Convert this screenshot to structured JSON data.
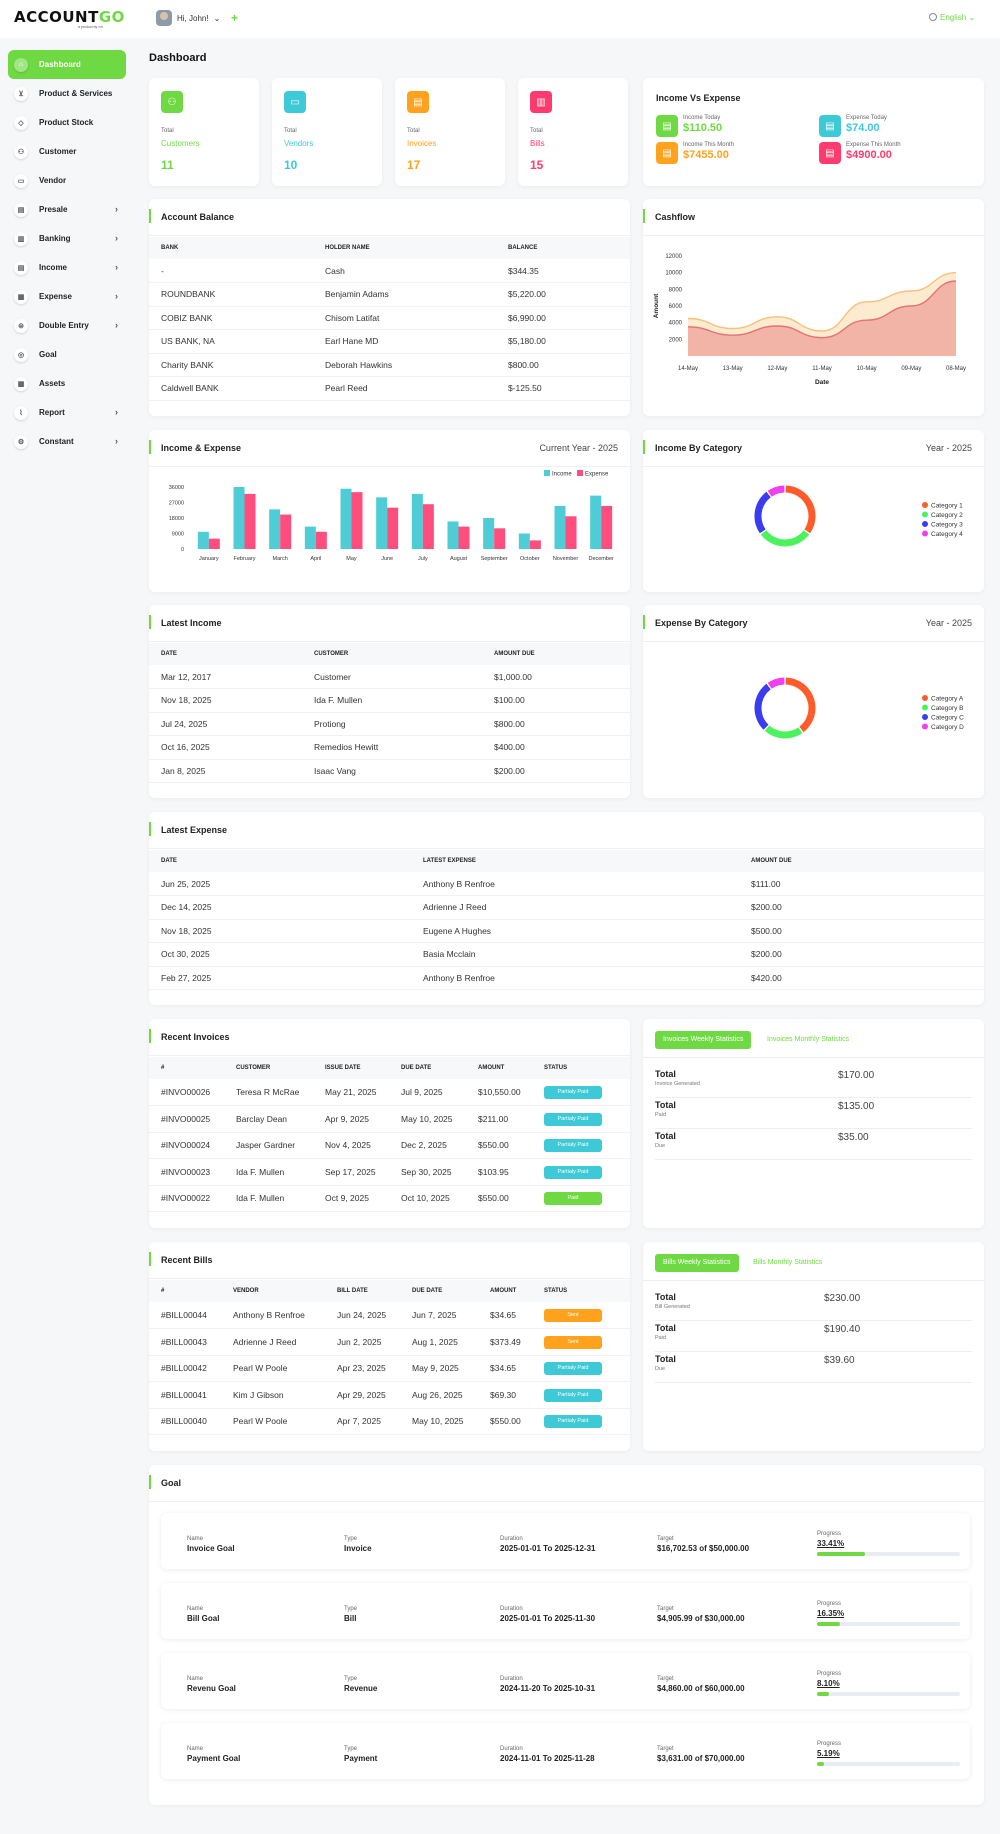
{
  "brand": {
    "name_a": "ACCOUNT",
    "name_b": "GO",
    "tagline": "a product by ▪▪▪▪"
  },
  "header": {
    "greeting": "Hi, John!",
    "language": "English"
  },
  "sidebar": {
    "items": [
      {
        "label": "Dashboard",
        "icon": "home-icon",
        "chev": false
      },
      {
        "label": "Product & Services",
        "icon": "cart-icon",
        "chev": false
      },
      {
        "label": "Product Stock",
        "icon": "box-icon",
        "chev": false
      },
      {
        "label": "Customer",
        "icon": "user-plus-icon",
        "chev": false
      },
      {
        "label": "Vendor",
        "icon": "note-icon",
        "chev": false
      },
      {
        "label": "Presale",
        "icon": "file-icon",
        "chev": true
      },
      {
        "label": "Banking",
        "icon": "bank-icon",
        "chev": true
      },
      {
        "label": "Income",
        "icon": "invoice-icon",
        "chev": true
      },
      {
        "label": "Expense",
        "icon": "receipt-icon",
        "chev": true
      },
      {
        "label": "Double Entry",
        "icon": "scale-icon",
        "chev": true
      },
      {
        "label": "Goal",
        "icon": "target-icon",
        "chev": false
      },
      {
        "label": "Assets",
        "icon": "calculator-icon",
        "chev": false
      },
      {
        "label": "Report",
        "icon": "chart-icon",
        "chev": true
      },
      {
        "label": "Constant",
        "icon": "settings-icon",
        "chev": true
      }
    ]
  },
  "page_title": "Dashboard",
  "stats": [
    {
      "label": "Total",
      "name": "Customers",
      "value": "11",
      "color": "#6fd943"
    },
    {
      "label": "Total",
      "name": "Vendors",
      "value": "10",
      "color": "#3ec9d6"
    },
    {
      "label": "Total",
      "name": "Invoices",
      "value": "17",
      "color": "#ffa21d"
    },
    {
      "label": "Total",
      "name": "Bills",
      "value": "15",
      "color": "#ff3a6e"
    }
  ],
  "income_vs_expense": {
    "title": "Income Vs Expense",
    "items": [
      {
        "label": "Income Today",
        "value": "$110.50",
        "color": "#6fd943"
      },
      {
        "label": "Expense Today",
        "value": "$74.00",
        "color": "#3ec9d6"
      },
      {
        "label": "Income This Month",
        "value": "$7455.00",
        "color": "#ffa21d"
      },
      {
        "label": "Expense This Month",
        "value": "$4900.00",
        "color": "#ff3a6e"
      }
    ]
  },
  "account_balance": {
    "title": "Account Balance",
    "headers": [
      "BANK",
      "HOLDER NAME",
      "BALANCE"
    ],
    "rows": [
      [
        "-",
        "Cash",
        "$344.35"
      ],
      [
        "ROUNDBANK",
        "Benjamin Adams",
        "$5,220.00"
      ],
      [
        "COBIZ BANK",
        "Chisom Latifat",
        "$6,990.00"
      ],
      [
        "US BANK, NA",
        "Earl Hane MD",
        "$5,180.00"
      ],
      [
        "Charity BANK",
        "Deborah Hawkins",
        "$800.00"
      ],
      [
        "Caldwell BANK",
        "Pearl Reed",
        "$-125.50"
      ]
    ]
  },
  "cashflow": {
    "title": "Cashflow"
  },
  "income_expense": {
    "title": "Income & Expense",
    "period": "Current Year - 2025"
  },
  "income_by_category": {
    "title": "Income By Category",
    "period": "Year - 2025"
  },
  "expense_by_category": {
    "title": "Expense By Category",
    "period": "Year - 2025"
  },
  "latest_income": {
    "title": "Latest Income",
    "headers": [
      "DATE",
      "CUSTOMER",
      "AMOUNT DUE"
    ],
    "rows": [
      [
        "Mar 12, 2017",
        "Customer",
        "$1,000.00"
      ],
      [
        "Nov 18, 2025",
        "Ida F. Mullen",
        "$100.00"
      ],
      [
        "Jul 24, 2025",
        "Protiong",
        "$800.00"
      ],
      [
        "Oct 16, 2025",
        "Remedios Hewitt",
        "$400.00"
      ],
      [
        "Jan 8, 2025",
        "Isaac Vang",
        "$200.00"
      ]
    ]
  },
  "latest_expense": {
    "title": "Latest Expense",
    "headers": [
      "DATE",
      "LATEST EXPENSE",
      "AMOUNT DUE"
    ],
    "rows": [
      [
        "Jun 25, 2025",
        "Anthony B Renfroe",
        "$111.00"
      ],
      [
        "Dec 14, 2025",
        "Adrienne J Reed",
        "$200.00"
      ],
      [
        "Nov 18, 2025",
        "Eugene A Hughes",
        "$500.00"
      ],
      [
        "Oct 30, 2025",
        "Basia Mcclain",
        "$200.00"
      ],
      [
        "Feb 27, 2025",
        "Anthony B Renfroe",
        "$420.00"
      ]
    ]
  },
  "recent_invoices": {
    "title": "Recent Invoices",
    "headers": [
      "#",
      "CUSTOMER",
      "ISSUE DATE",
      "DUE DATE",
      "AMOUNT",
      "STATUS"
    ],
    "rows": [
      [
        "#INVO00026",
        "Teresa R McRae",
        "May 21, 2025",
        "Jul 9, 2025",
        "$10,550.00",
        "Partialy Paid"
      ],
      [
        "#INVO00025",
        "Barclay Dean",
        "Apr 9, 2025",
        "May 10, 2025",
        "$211.00",
        "Partialy Paid"
      ],
      [
        "#INVO00024",
        "Jasper Gardner",
        "Nov 4, 2025",
        "Dec 2, 2025",
        "$550.00",
        "Partialy Paid"
      ],
      [
        "#INVO00023",
        "Ida F. Mullen",
        "Sep 17, 2025",
        "Sep 30, 2025",
        "$103.95",
        "Partialy Paid"
      ],
      [
        "#INVO00022",
        "Ida F. Mullen",
        "Oct 9, 2025",
        "Oct 10, 2025",
        "$550.00",
        "Paid"
      ]
    ]
  },
  "invoice_stats": {
    "tab_weekly": "Invoices Weekly Statistics",
    "tab_monthly": "Invoices Monthly Statistics",
    "rows": [
      {
        "title": "Total",
        "sub": "Invoice Generated",
        "value": "$170.00"
      },
      {
        "title": "Total",
        "sub": "Paid",
        "value": "$135.00"
      },
      {
        "title": "Total",
        "sub": "Due",
        "value": "$35.00"
      }
    ]
  },
  "recent_bills": {
    "title": "Recent Bills",
    "headers": [
      "#",
      "VENDOR",
      "BILL DATE",
      "DUE DATE",
      "AMOUNT",
      "STATUS"
    ],
    "rows": [
      [
        "#BILL00044",
        "Anthony B Renfroe",
        "Jun 24, 2025",
        "Jun 7, 2025",
        "$34.65",
        "Sent"
      ],
      [
        "#BILL00043",
        "Adrienne J Reed",
        "Jun 2, 2025",
        "Aug 1, 2025",
        "$373.49",
        "Sent"
      ],
      [
        "#BILL00042",
        "Pearl W Poole",
        "Apr 23, 2025",
        "May 9, 2025",
        "$34.65",
        "Partialy Paid"
      ],
      [
        "#BILL00041",
        "Kim J Gibson",
        "Apr 29, 2025",
        "Aug 26, 2025",
        "$69.30",
        "Partialy Paid"
      ],
      [
        "#BILL00040",
        "Pearl W Poole",
        "Apr 7, 2025",
        "May 10, 2025",
        "$550.00",
        "Partialy Paid"
      ]
    ]
  },
  "bill_stats": {
    "tab_weekly": "Bills Weekly Statistics",
    "tab_monthly": "Bills Monthly Statistics",
    "rows": [
      {
        "title": "Total",
        "sub": "Bill Generated",
        "value": "$230.00"
      },
      {
        "title": "Total",
        "sub": "Paid",
        "value": "$190.40"
      },
      {
        "title": "Total",
        "sub": "Due",
        "value": "$39.60"
      }
    ]
  },
  "goals": {
    "title": "Goal",
    "labels": {
      "name": "Name",
      "type": "Type",
      "duration": "Duration",
      "target": "Target",
      "progress": "Progress"
    },
    "items": [
      {
        "name": "Invoice Goal",
        "type": "Invoice",
        "duration": "2025-01-01 To 2025-12-31",
        "target": "$16,702.53 of $50,000.00",
        "progress": "33.41%",
        "pct": 33.41
      },
      {
        "name": "Bill Goal",
        "type": "Bill",
        "duration": "2025-01-01 To 2025-11-30",
        "target": "$4,905.99 of $30,000.00",
        "progress": "16.35%",
        "pct": 16.35
      },
      {
        "name": "Revenu Goal",
        "type": "Revenue",
        "duration": "2024-11-20 To 2025-10-31",
        "target": "$4,860.00 of $60,000.00",
        "progress": "8.10%",
        "pct": 8.1
      },
      {
        "name": "Payment Goal",
        "type": "Payment",
        "duration": "2024-11-01 To 2025-11-28",
        "target": "$3,631.00 of $70,000.00",
        "progress": "5.19%",
        "pct": 5.19
      }
    ]
  },
  "status_colors": {
    "Partialy Paid": "#3ec9d6",
    "Paid": "#6fd943",
    "Sent": "#ffa21d"
  },
  "chart_data": [
    {
      "type": "area",
      "x": [
        "14-May",
        "13-May",
        "12-May",
        "11-May",
        "10-May",
        "09-May",
        "08-May"
      ],
      "series": [
        {
          "values": [
            4500,
            3300,
            4700,
            3000,
            6500,
            7800,
            10000
          ],
          "color": "#f6c27a"
        },
        {
          "values": [
            3500,
            2500,
            3600,
            2200,
            4300,
            6000,
            9000
          ],
          "color": "#e57373"
        }
      ],
      "xlabel": "Date",
      "ylabel": "Amount",
      "yticks": [
        2000,
        4000,
        6000,
        8000,
        10000,
        12000
      ]
    },
    {
      "type": "bar",
      "categories": [
        "January",
        "February",
        "March",
        "April",
        "May",
        "June",
        "July",
        "August",
        "September",
        "October",
        "November",
        "December"
      ],
      "series": [
        {
          "name": "Income",
          "values": [
            10000,
            36000,
            23000,
            13000,
            35000,
            30000,
            32000,
            16000,
            18000,
            9000,
            25000,
            31000
          ],
          "color": "#4ecdd6"
        },
        {
          "name": "Expense",
          "values": [
            6000,
            32000,
            20000,
            10000,
            33000,
            24000,
            26000,
            13000,
            12000,
            5000,
            19000,
            25000
          ],
          "color": "#ff4d7d"
        }
      ],
      "yticks": [
        0,
        9000,
        18000,
        27000,
        36000
      ]
    },
    {
      "type": "pie",
      "labels": [
        "Category 1",
        "Category 2",
        "Category 3",
        "Category 4"
      ],
      "values": [
        35,
        30,
        25,
        10
      ],
      "colors": [
        "#ff5b2b",
        "#4cf25d",
        "#3b3bf0",
        "#f23ef0"
      ]
    },
    {
      "type": "pie",
      "labels": [
        "Category A",
        "Category B",
        "Category C",
        "Category D"
      ],
      "values": [
        40,
        22,
        28,
        10
      ],
      "colors": [
        "#ff5b2b",
        "#4cf25d",
        "#3b3bf0",
        "#f23ef0"
      ]
    }
  ]
}
